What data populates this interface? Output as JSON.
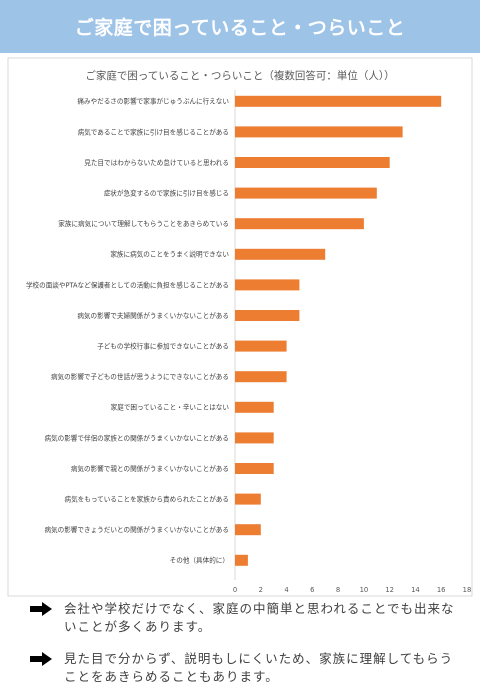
{
  "header": {
    "title": "ご家庭で困っていること・つらいこと"
  },
  "colors": {
    "banner": "#9dc3e6",
    "bar": "#ed7d31",
    "text": "#404040"
  },
  "chart_data": {
    "type": "bar",
    "orientation": "horizontal",
    "title": "ご家庭で困っていること・つらいこと（複数回答可：単位（人））",
    "categories": [
      "痛みやだるさの影響で家事がじゅうぶんに行えない",
      "病気であることで家族に引け目を感じることがある",
      "見た目ではわからないため怠けていると思われる",
      "症状が急変するので家族に引け目を感じる",
      "家族に病気について理解してもらうことをあきらめている",
      "家族に病気のことをうまく説明できない",
      "学校の面談やPTAなど保護者としての活動に負担を感じることがある",
      "病気の影響で夫婦関係がうまくいかないことがある",
      "子どもの学校行事に参加できないことがある",
      "病気の影響で子どもの世話が思うようにできないことがある",
      "家庭で困っていること・辛いことはない",
      "病気の影響で伴侶の家族との関係がうまくいかないことがある",
      "病気の影響で親との関係がうまくいかないことがある",
      "病気をもっていることを家族から責められたことがある",
      "病気の影響できょうだいとの関係がうまくいかないことがある",
      "その他（具体的に）"
    ],
    "values": [
      16,
      13,
      12,
      11,
      10,
      7,
      5,
      5,
      4,
      4,
      3,
      3,
      3,
      2,
      2,
      1
    ],
    "xlim": [
      0,
      18
    ],
    "xticks": [
      0,
      2,
      4,
      6,
      8,
      10,
      12,
      14,
      16,
      18
    ],
    "grid": false,
    "legend": "none"
  },
  "notes": [
    "会社や学校だけでなく、家庭の中簡単と思われることでも出来ないことが多くあります。",
    "見た目で分からず、説明もしにくいため、家族に理解してもらうことをあきらめることもあります。"
  ]
}
